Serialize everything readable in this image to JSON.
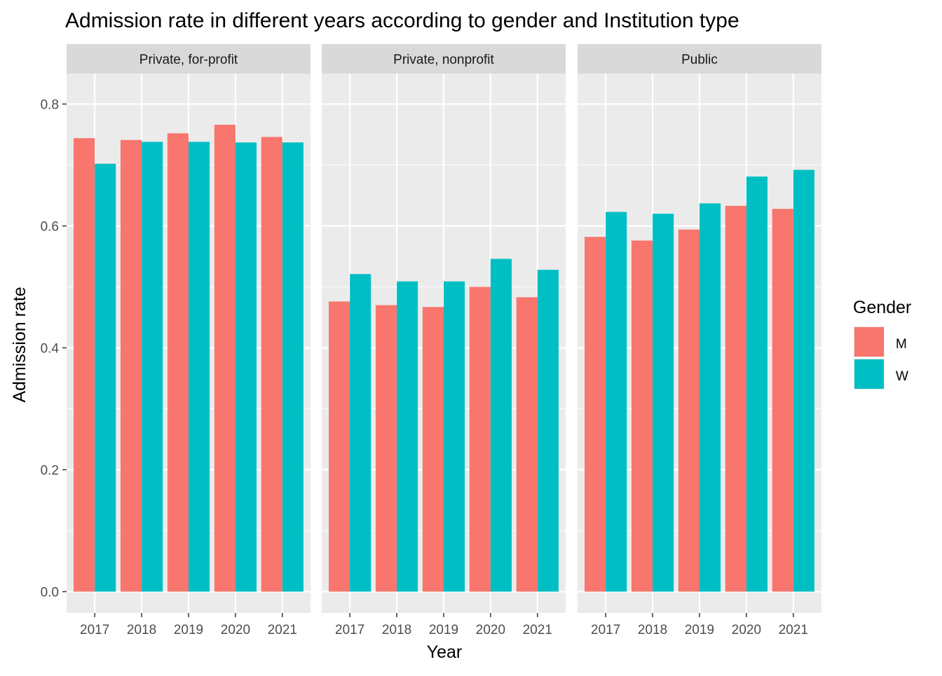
{
  "chart_data": {
    "type": "bar",
    "title": "Admission rate in different years according to gender and Institution type",
    "xlabel": "Year",
    "ylabel": "Admission rate",
    "ylim": [
      -0.035,
      0.85
    ],
    "yticks": [
      "0.0",
      "0.2",
      "0.4",
      "0.6",
      "0.8"
    ],
    "categories": [
      "2017",
      "2018",
      "2019",
      "2020",
      "2021"
    ],
    "grid": true,
    "legend": {
      "title": "Gender",
      "position": "right",
      "entries": [
        {
          "name": "M",
          "color": "#F8766D"
        },
        {
          "name": "W",
          "color": "#00BFC4"
        }
      ]
    },
    "panels": [
      {
        "label": "Private, for-profit",
        "series": [
          {
            "name": "M",
            "values": [
              0.744,
              0.741,
              0.752,
              0.766,
              0.746
            ]
          },
          {
            "name": "W",
            "values": [
              0.702,
              0.738,
              0.738,
              0.737,
              0.737
            ]
          }
        ]
      },
      {
        "label": "Private, nonprofit",
        "series": [
          {
            "name": "M",
            "values": [
              0.476,
              0.47,
              0.467,
              0.5,
              0.483
            ]
          },
          {
            "name": "W",
            "values": [
              0.521,
              0.509,
              0.509,
              0.546,
              0.528
            ]
          }
        ]
      },
      {
        "label": "Public",
        "series": [
          {
            "name": "M",
            "values": [
              0.582,
              0.576,
              0.594,
              0.633,
              0.628
            ]
          },
          {
            "name": "W",
            "values": [
              0.623,
              0.62,
              0.637,
              0.681,
              0.692
            ]
          }
        ]
      }
    ]
  },
  "colors": {
    "panel_background": "#EBEBEB",
    "strip_background": "#D9D9D9",
    "grid_line": "#FFFFFF",
    "M": "#F8766D",
    "W": "#00BFC4"
  }
}
